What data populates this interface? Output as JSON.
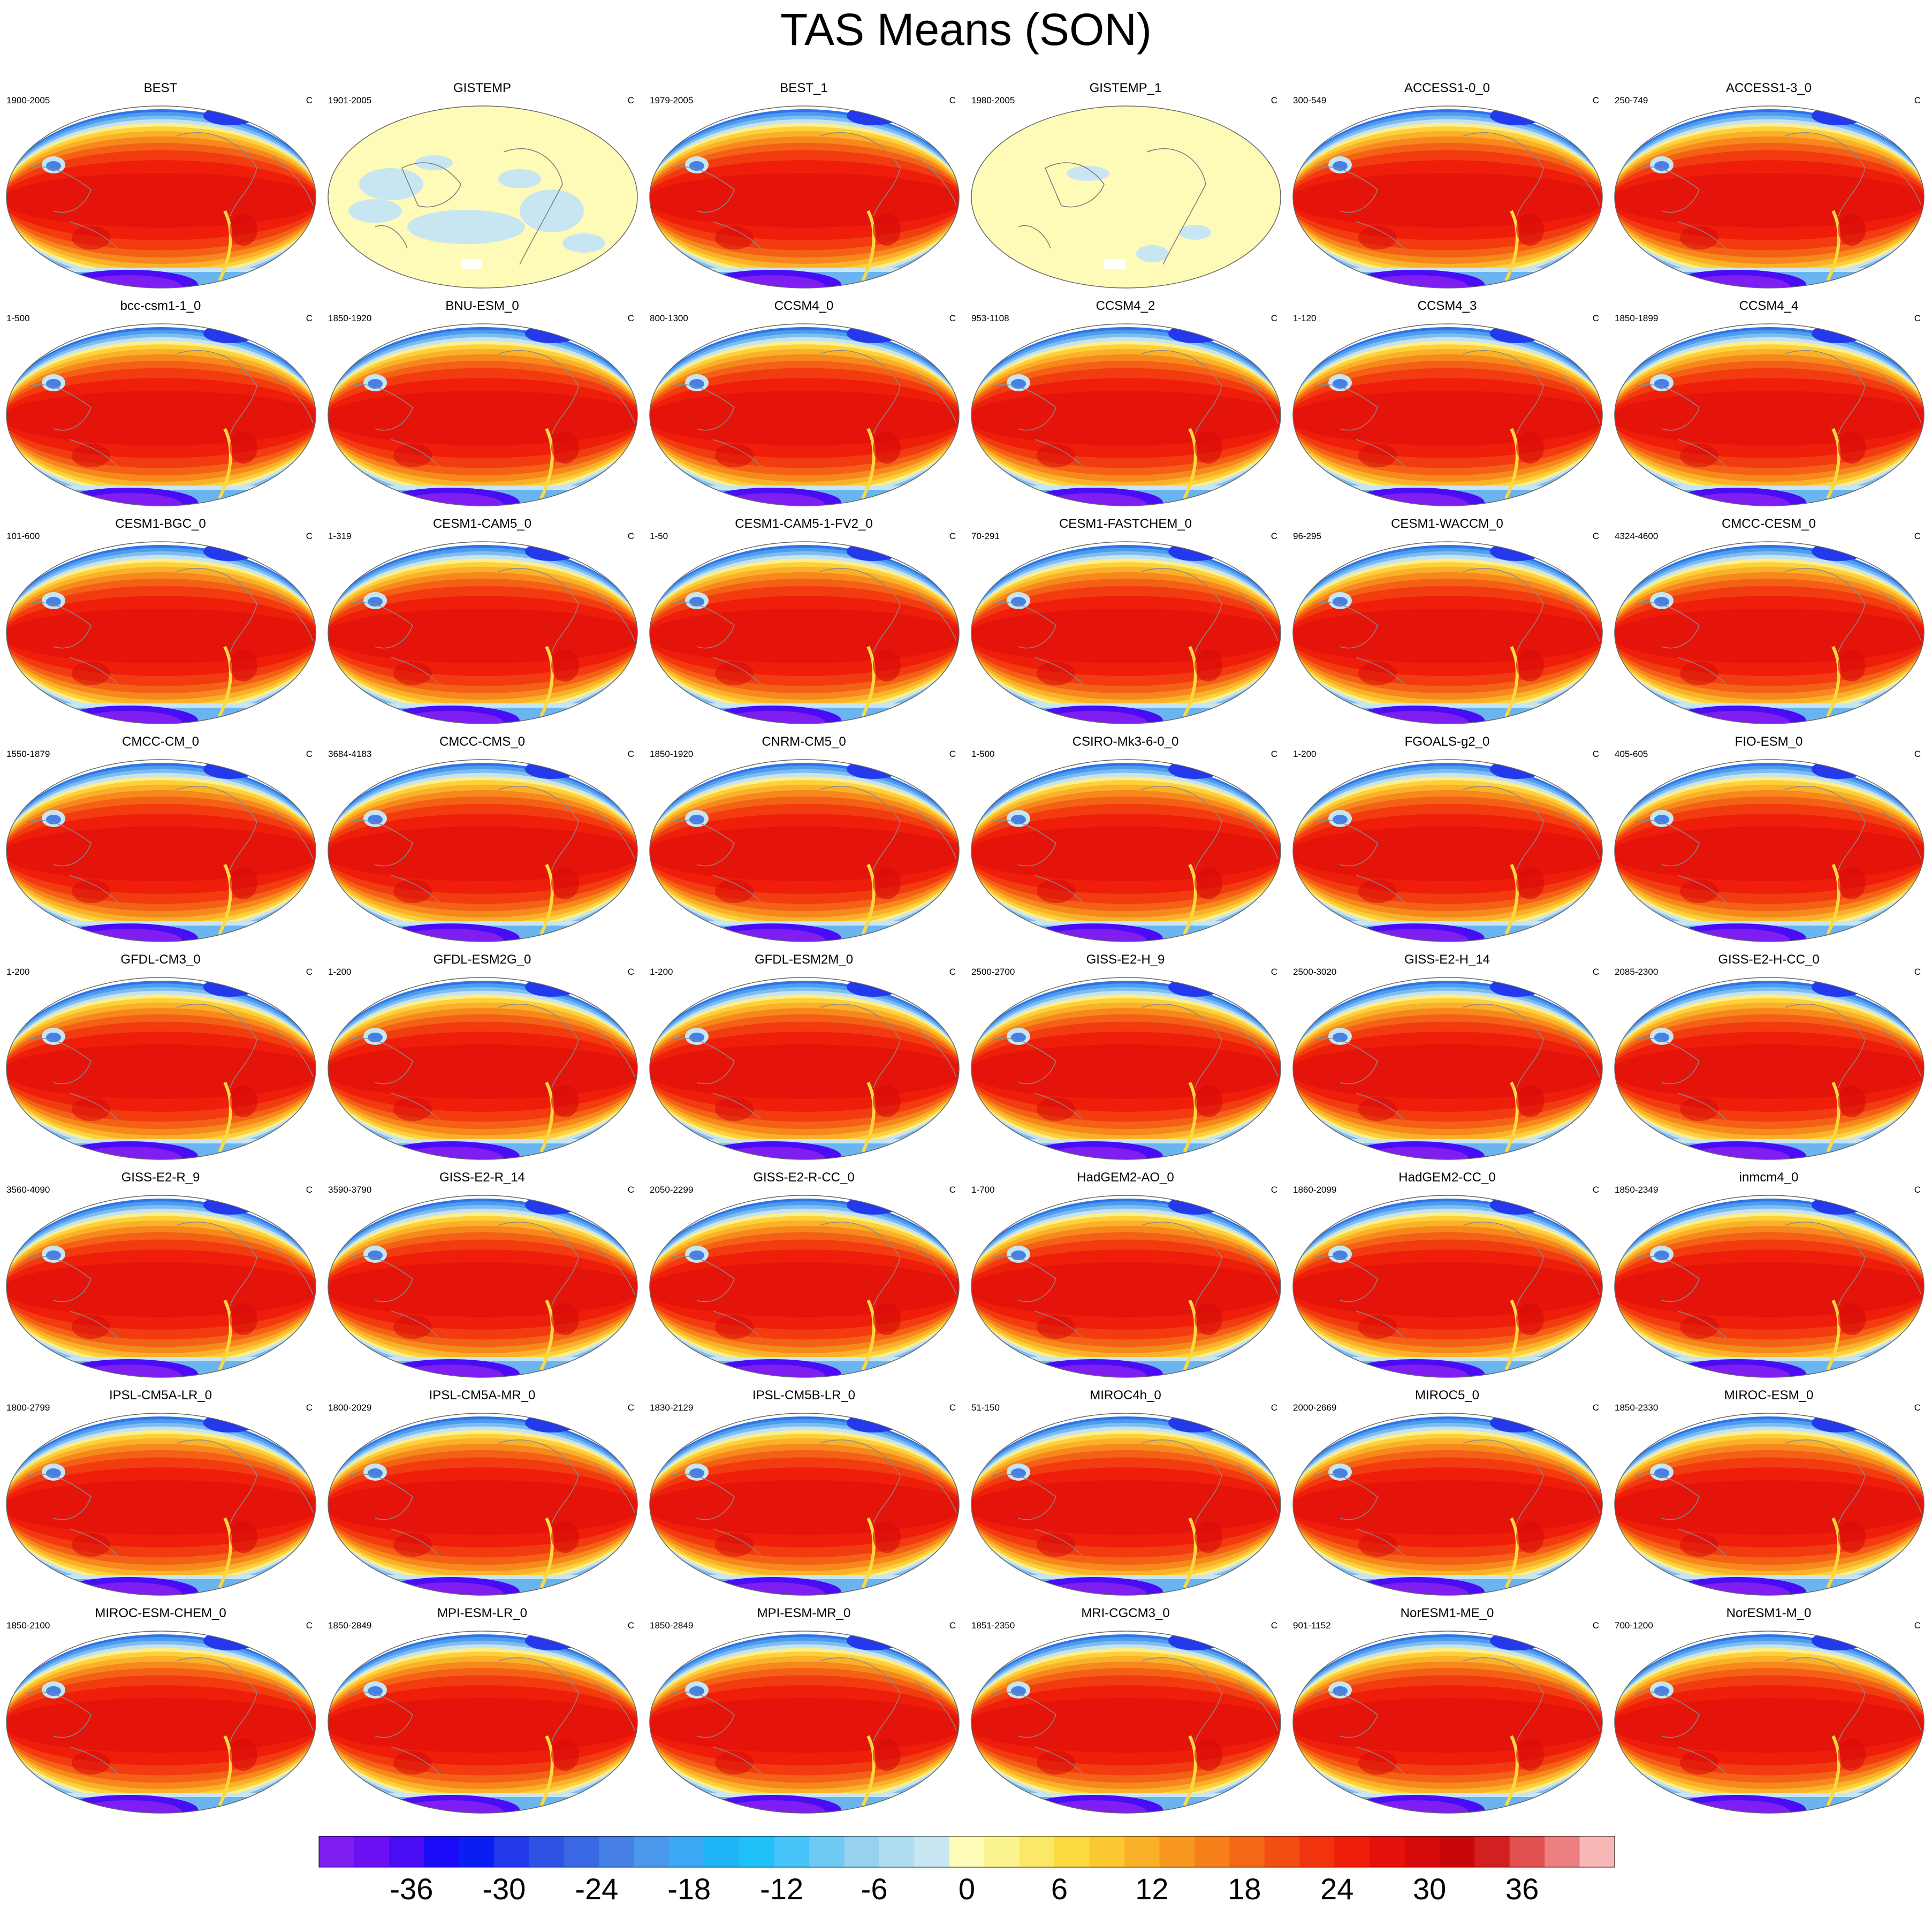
{
  "title": "TAS Means (SON)",
  "chart_data": {
    "type": "heatmap",
    "title": "TAS Means (SON)",
    "layout": "grid of 48 map panels, 6 columns by 8 rows",
    "projection": "Robinson (global, Pacific-centered)",
    "units": "C",
    "panels": [
      {
        "name": "BEST",
        "period": "1900-2005",
        "units": "C",
        "coverage": "full"
      },
      {
        "name": "GISTEMP",
        "period": "1901-2005",
        "units": "C",
        "coverage": "sparse"
      },
      {
        "name": "BEST_1",
        "period": "1979-2005",
        "units": "C",
        "coverage": "full"
      },
      {
        "name": "GISTEMP_1",
        "period": "1980-2005",
        "units": "C",
        "coverage": "sparse"
      },
      {
        "name": "ACCESS1-0_0",
        "period": "300-549",
        "units": "C",
        "coverage": "full"
      },
      {
        "name": "ACCESS1-3_0",
        "period": "250-749",
        "units": "C",
        "coverage": "full"
      },
      {
        "name": "bcc-csm1-1_0",
        "period": "1-500",
        "units": "C",
        "coverage": "full"
      },
      {
        "name": "BNU-ESM_0",
        "period": "1850-1920",
        "units": "C",
        "coverage": "full"
      },
      {
        "name": "CCSM4_0",
        "period": "800-1300",
        "units": "C",
        "coverage": "full"
      },
      {
        "name": "CCSM4_2",
        "period": "953-1108",
        "units": "C",
        "coverage": "full"
      },
      {
        "name": "CCSM4_3",
        "period": "1-120",
        "units": "C",
        "coverage": "full"
      },
      {
        "name": "CCSM4_4",
        "period": "1850-1899",
        "units": "C",
        "coverage": "full"
      },
      {
        "name": "CESM1-BGC_0",
        "period": "101-600",
        "units": "C",
        "coverage": "full"
      },
      {
        "name": "CESM1-CAM5_0",
        "period": "1-319",
        "units": "C",
        "coverage": "full"
      },
      {
        "name": "CESM1-CAM5-1-FV2_0",
        "period": "1-50",
        "units": "C",
        "coverage": "full"
      },
      {
        "name": "CESM1-FASTCHEM_0",
        "period": "70-291",
        "units": "C",
        "coverage": "full"
      },
      {
        "name": "CESM1-WACCM_0",
        "period": "96-295",
        "units": "C",
        "coverage": "full"
      },
      {
        "name": "CMCC-CESM_0",
        "period": "4324-4600",
        "units": "C",
        "coverage": "full"
      },
      {
        "name": "CMCC-CM_0",
        "period": "1550-1879",
        "units": "C",
        "coverage": "full"
      },
      {
        "name": "CMCC-CMS_0",
        "period": "3684-4183",
        "units": "C",
        "coverage": "full"
      },
      {
        "name": "CNRM-CM5_0",
        "period": "1850-1920",
        "units": "C",
        "coverage": "full"
      },
      {
        "name": "CSIRO-Mk3-6-0_0",
        "period": "1-500",
        "units": "C",
        "coverage": "full"
      },
      {
        "name": "FGOALS-g2_0",
        "period": "1-200",
        "units": "C",
        "coverage": "full"
      },
      {
        "name": "FIO-ESM_0",
        "period": "405-605",
        "units": "C",
        "coverage": "full"
      },
      {
        "name": "GFDL-CM3_0",
        "period": "1-200",
        "units": "C",
        "coverage": "full"
      },
      {
        "name": "GFDL-ESM2G_0",
        "period": "1-200",
        "units": "C",
        "coverage": "full"
      },
      {
        "name": "GFDL-ESM2M_0",
        "period": "1-200",
        "units": "C",
        "coverage": "full"
      },
      {
        "name": "GISS-E2-H_9",
        "period": "2500-2700",
        "units": "C",
        "coverage": "full"
      },
      {
        "name": "GISS-E2-H_14",
        "period": "2500-3020",
        "units": "C",
        "coverage": "full"
      },
      {
        "name": "GISS-E2-H-CC_0",
        "period": "2085-2300",
        "units": "C",
        "coverage": "full"
      },
      {
        "name": "GISS-E2-R_9",
        "period": "3560-4090",
        "units": "C",
        "coverage": "full"
      },
      {
        "name": "GISS-E2-R_14",
        "period": "3590-3790",
        "units": "C",
        "coverage": "full"
      },
      {
        "name": "GISS-E2-R-CC_0",
        "period": "2050-2299",
        "units": "C",
        "coverage": "full"
      },
      {
        "name": "HadGEM2-AO_0",
        "period": "1-700",
        "units": "C",
        "coverage": "full"
      },
      {
        "name": "HadGEM2-CC_0",
        "period": "1860-2099",
        "units": "C",
        "coverage": "full"
      },
      {
        "name": "inmcm4_0",
        "period": "1850-2349",
        "units": "C",
        "coverage": "full"
      },
      {
        "name": "IPSL-CM5A-LR_0",
        "period": "1800-2799",
        "units": "C",
        "coverage": "full"
      },
      {
        "name": "IPSL-CM5A-MR_0",
        "period": "1800-2029",
        "units": "C",
        "coverage": "full"
      },
      {
        "name": "IPSL-CM5B-LR_0",
        "period": "1830-2129",
        "units": "C",
        "coverage": "full"
      },
      {
        "name": "MIROC4h_0",
        "period": "51-150",
        "units": "C",
        "coverage": "full"
      },
      {
        "name": "MIROC5_0",
        "period": "2000-2669",
        "units": "C",
        "coverage": "full"
      },
      {
        "name": "MIROC-ESM_0",
        "period": "1850-2330",
        "units": "C",
        "coverage": "full"
      },
      {
        "name": "MIROC-ESM-CHEM_0",
        "period": "1850-2100",
        "units": "C",
        "coverage": "full"
      },
      {
        "name": "MPI-ESM-LR_0",
        "period": "1850-2849",
        "units": "C",
        "coverage": "full"
      },
      {
        "name": "MPI-ESM-MR_0",
        "period": "1850-2849",
        "units": "C",
        "coverage": "full"
      },
      {
        "name": "MRI-CGCM3_0",
        "period": "1851-2350",
        "units": "C",
        "coverage": "full"
      },
      {
        "name": "NorESM1-ME_0",
        "period": "901-1152",
        "units": "C",
        "coverage": "full"
      },
      {
        "name": "NorESM1-M_0",
        "period": "700-1200",
        "units": "C",
        "coverage": "full"
      }
    ],
    "colorbar": {
      "orientation": "horizontal",
      "min": -42,
      "max": 42,
      "step": 2,
      "tick_labels": [
        "-36",
        "-30",
        "-24",
        "-18",
        "-12",
        "-6",
        "0",
        "6",
        "12",
        "18",
        "24",
        "30",
        "36"
      ],
      "colors": [
        "#7e1ef0",
        "#6a10f2",
        "#4a0cf4",
        "#1a0cf8",
        "#0a1ef4",
        "#2438ec",
        "#2e52e4",
        "#3a68e2",
        "#4680e4",
        "#4a98ec",
        "#3aa8f4",
        "#1eb4f6",
        "#20c0f8",
        "#44c4f8",
        "#6ccaf4",
        "#96d2f0",
        "#b0dcf0",
        "#c8e6f2",
        "#fdfbb8",
        "#fcf490",
        "#fbe866",
        "#fcd93e",
        "#fcc832",
        "#fbb02a",
        "#f99820",
        "#f7801a",
        "#f46816",
        "#f24e12",
        "#f1340e",
        "#ee1e0a",
        "#e4120a",
        "#d60a0a",
        "#c80808",
        "#d22020",
        "#e05050",
        "#ec8080",
        "#f8b8b8"
      ]
    },
    "background_colors": {
      "sparse_land": "#fefbb8",
      "sparse_other": "#c8e6f2",
      "outline": "#777777"
    }
  }
}
